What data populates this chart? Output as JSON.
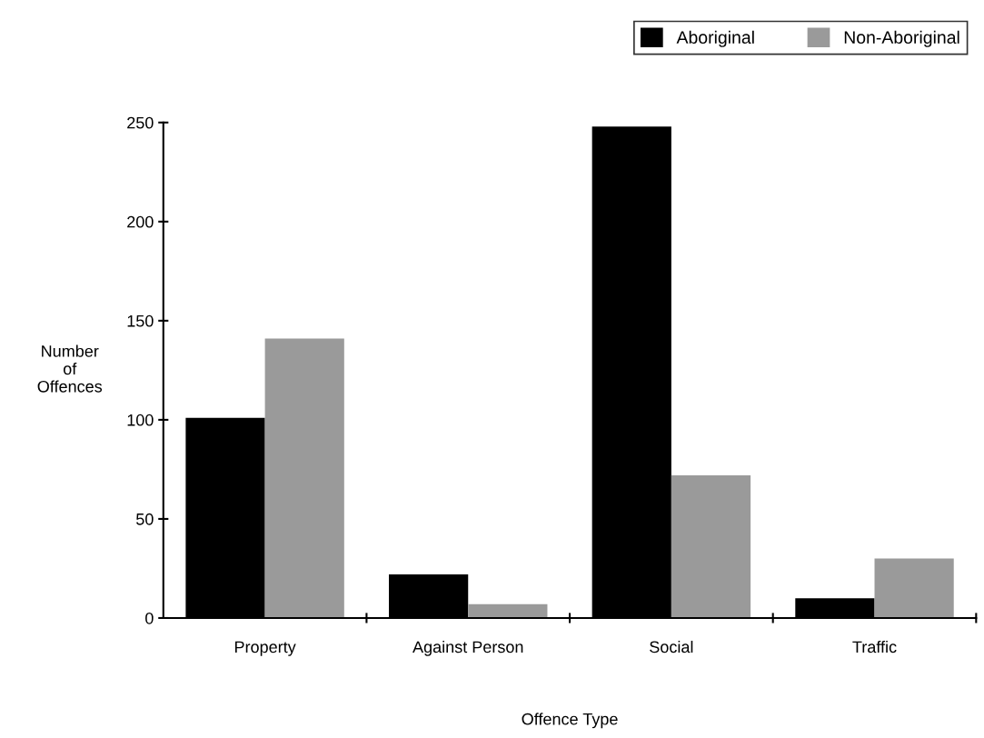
{
  "chart_data": {
    "type": "bar",
    "xlabel": "Offence Type",
    "ylabel": "Number\nof\nOffences",
    "categories": [
      "Property",
      "Against Person",
      "Social",
      "Traffic"
    ],
    "series": [
      {
        "name": "Aboriginal",
        "color": "#000000",
        "values": [
          101,
          22,
          248,
          10
        ]
      },
      {
        "name": "Non-Aboriginal",
        "color": "#9a9a9a",
        "values": [
          141,
          7,
          72,
          30
        ]
      }
    ],
    "ylim": [
      0,
      250
    ],
    "yticks": [
      0,
      50,
      100,
      150,
      200,
      250
    ],
    "grid": false,
    "legend": "top right"
  }
}
